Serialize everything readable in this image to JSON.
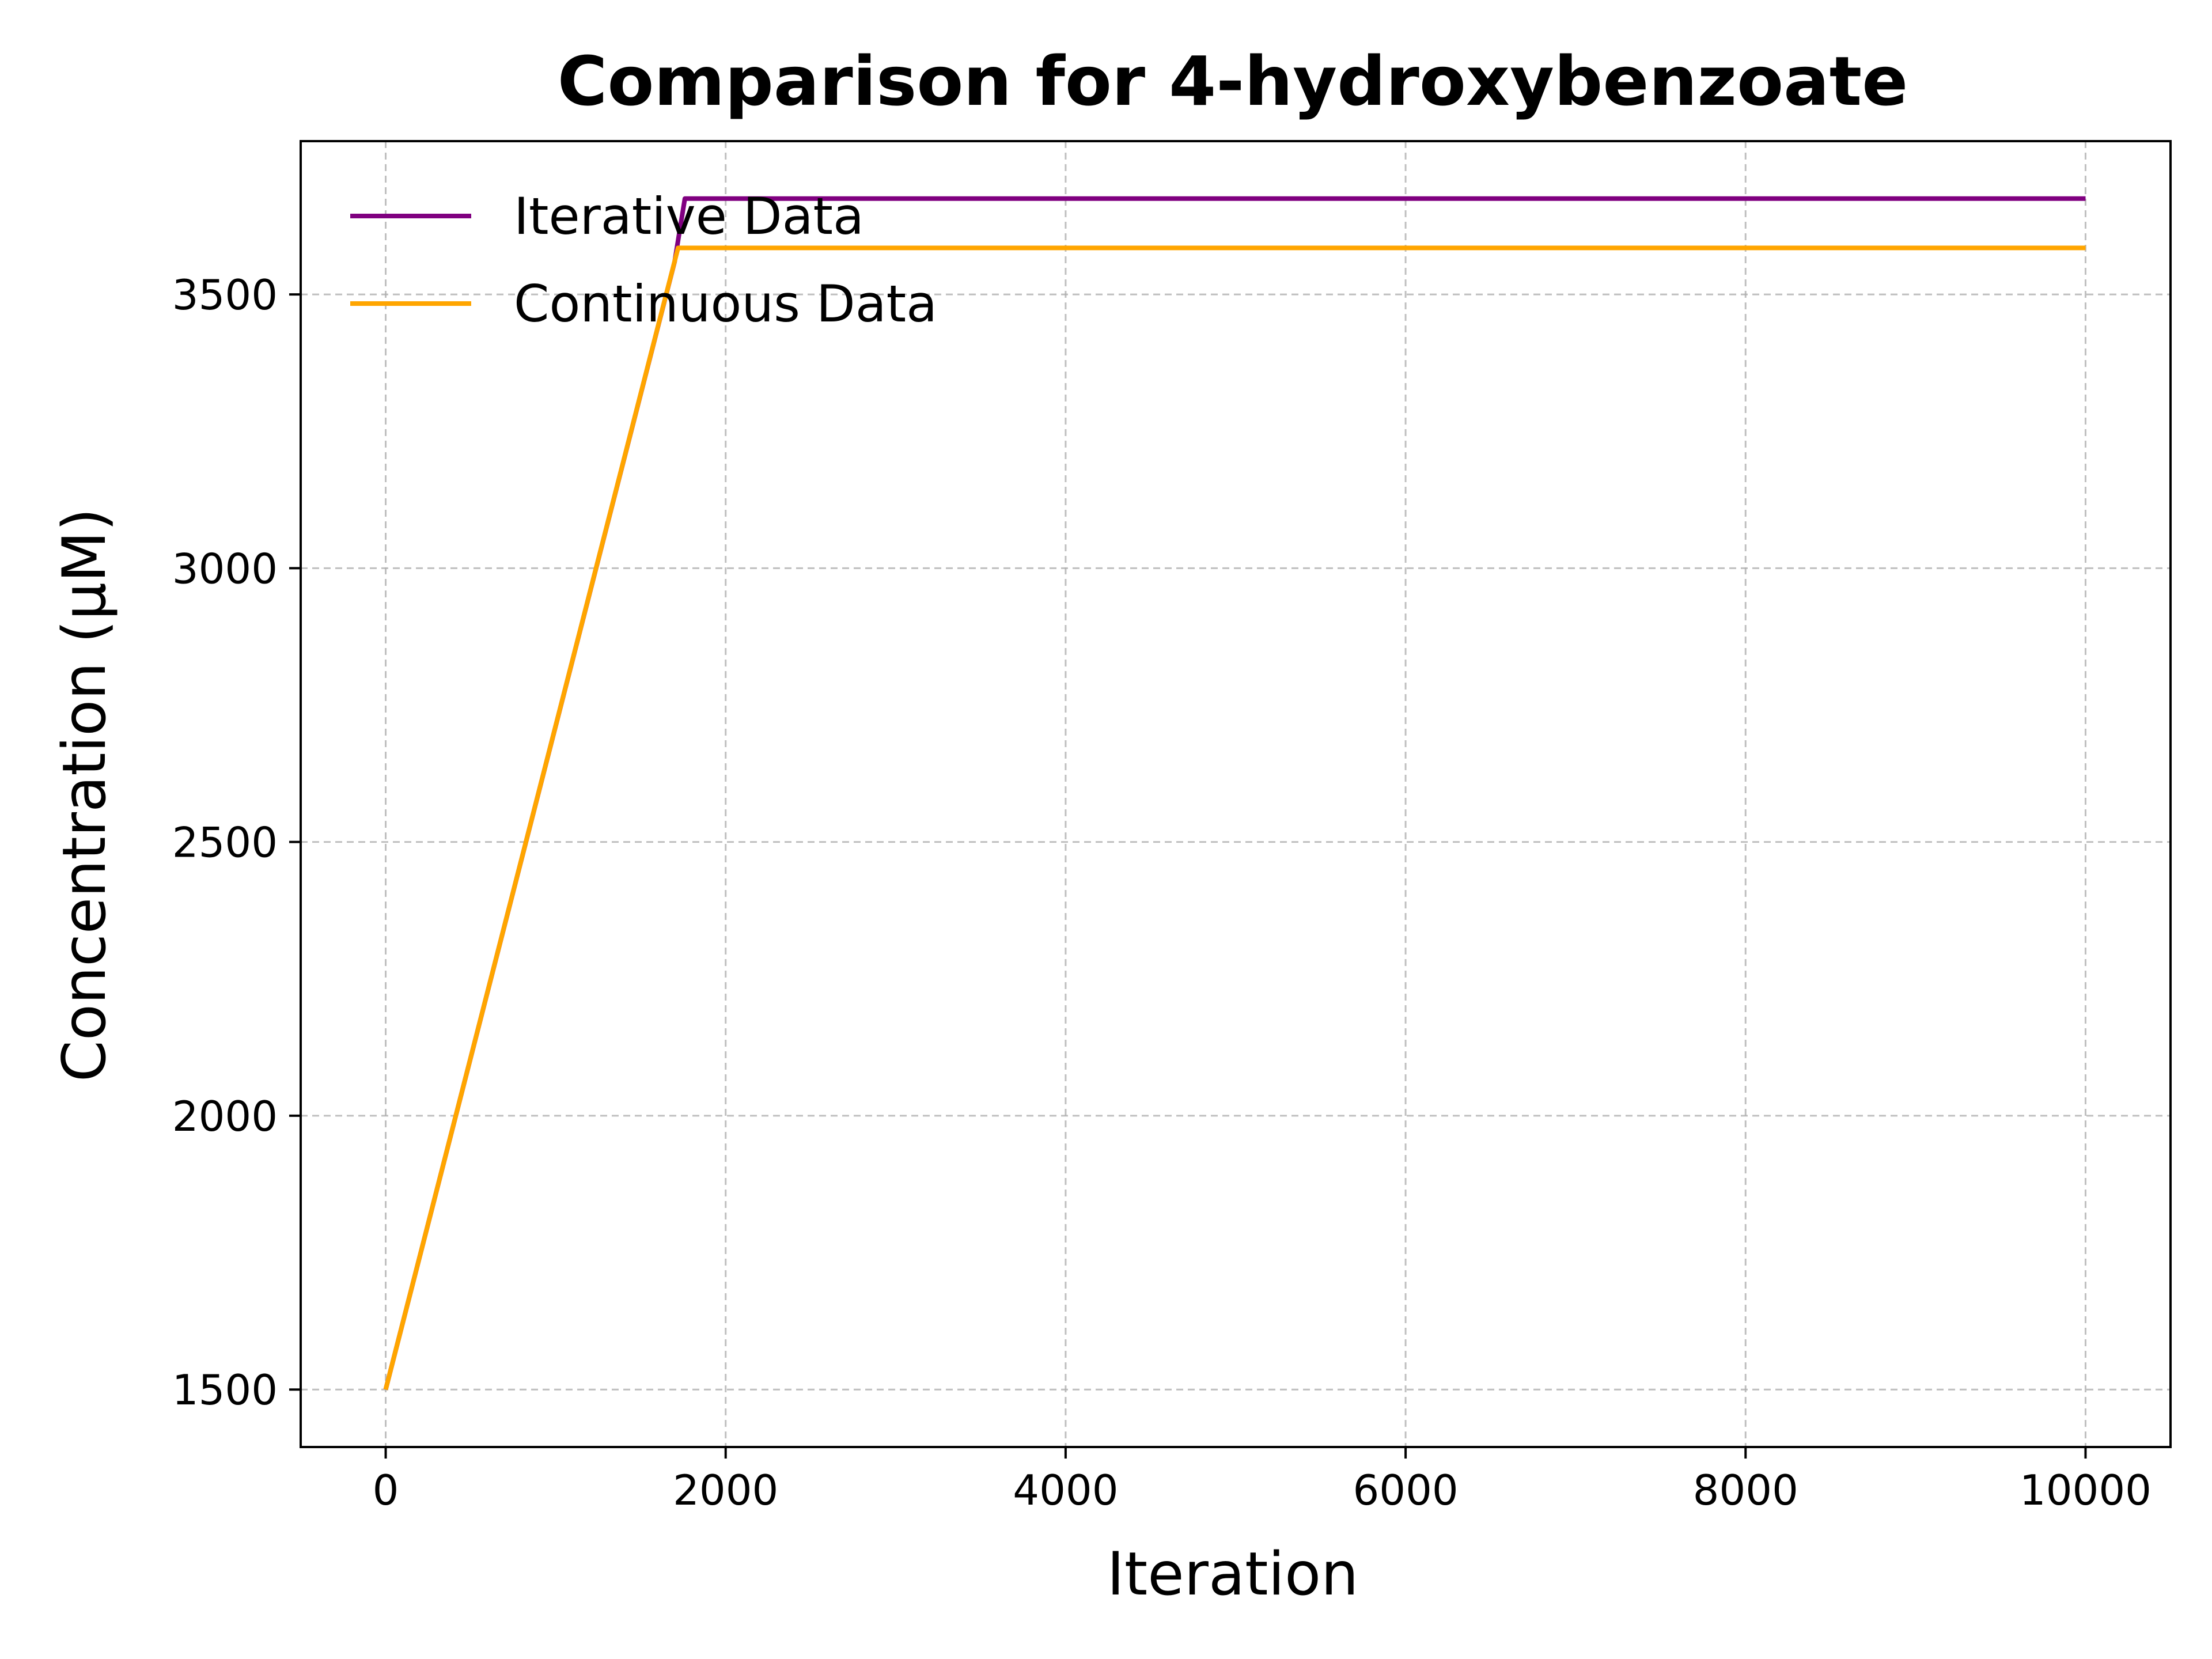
{
  "chart_data": {
    "type": "line",
    "title": "Comparison for 4-hydroxybenzoate",
    "xlabel": "Iteration",
    "ylabel": "Concentration (μM)",
    "xlim": [
      -500,
      10500
    ],
    "ylim": [
      1395,
      3780
    ],
    "xticks": [
      0,
      2000,
      4000,
      6000,
      8000,
      10000
    ],
    "yticks": [
      1500,
      2000,
      2500,
      3000,
      3500
    ],
    "grid": true,
    "legend_position": "upper-left",
    "series": [
      {
        "name": "Iterative Data",
        "color": "#800080",
        "x": [
          0,
          1700,
          1760,
          10000
        ],
        "y": [
          1500,
          3560,
          3675,
          3675
        ]
      },
      {
        "name": "Continuous Data",
        "color": "#ffa500",
        "x": [
          0,
          1720,
          10000
        ],
        "y": [
          1500,
          3585,
          3585
        ]
      }
    ]
  }
}
